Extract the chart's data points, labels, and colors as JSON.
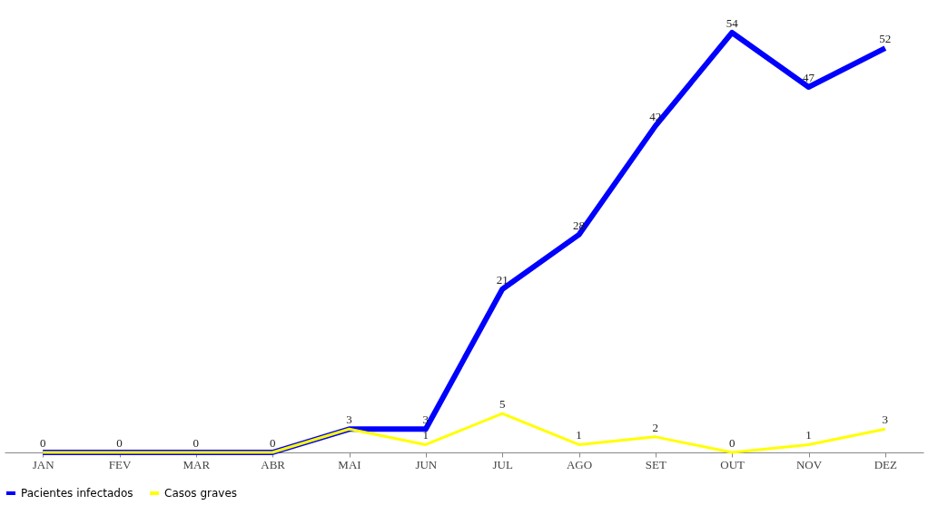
{
  "chart_data": {
    "type": "line",
    "categories": [
      "JAN",
      "FEV",
      "MAR",
      "ABR",
      "MAI",
      "JUN",
      "JUL",
      "AGO",
      "SET",
      "OUT",
      "NOV",
      "DEZ"
    ],
    "series": [
      {
        "name": "Pacientes infectados",
        "color": "#0000ff",
        "values": [
          0,
          0,
          0,
          0,
          3,
          3,
          21,
          28,
          42,
          54,
          47,
          52
        ],
        "value_labels": [
          "0",
          "0",
          "0",
          "0",
          "3",
          "3",
          "21",
          "28",
          "42",
          "54",
          "47",
          "52"
        ]
      },
      {
        "name": "Casos graves",
        "color": "#ffff00",
        "values": [
          0,
          0,
          0,
          0,
          3,
          1,
          5,
          1,
          2,
          0,
          1,
          3
        ],
        "value_labels": [
          null,
          null,
          null,
          null,
          null,
          "1",
          "5",
          "1",
          "2",
          "0",
          "1",
          "3"
        ]
      }
    ],
    "legend": "bottom",
    "grid": false,
    "marker": "none",
    "line_style": "solid"
  }
}
